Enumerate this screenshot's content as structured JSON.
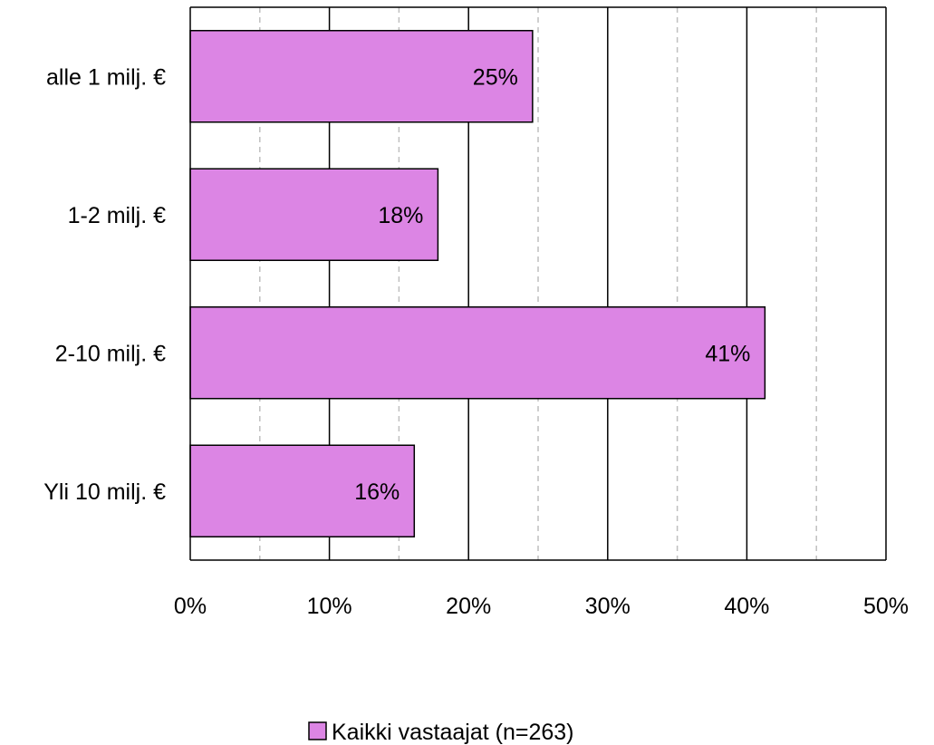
{
  "chart_data": {
    "type": "bar",
    "orientation": "horizontal",
    "categories": [
      "alle 1 milj. €",
      "1-2 milj. €",
      "2-10 milj. €",
      "Yli 10 milj. €"
    ],
    "series": [
      {
        "name": "Kaikki vastaajat (n=263)",
        "values": [
          24.6,
          17.8,
          41.3,
          16.1
        ],
        "labels": [
          "25%",
          "18%",
          "41%",
          "16%"
        ],
        "color": "#dc85e4"
      }
    ],
    "xticks": [
      "0%",
      "10%",
      "20%",
      "30%",
      "40%",
      "50%"
    ],
    "xlim": [
      0,
      50
    ],
    "grid": {
      "major_every": 10,
      "minor_every": 5,
      "minor_style": "dashed"
    },
    "legend": {
      "position": "bottom-center"
    }
  }
}
